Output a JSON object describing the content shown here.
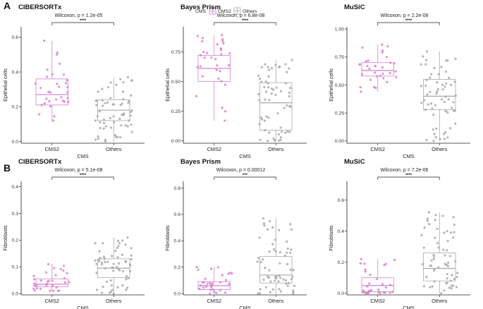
{
  "legend": {
    "title": "CMS",
    "entries": [
      "CMS2",
      "Others"
    ]
  },
  "colors": {
    "CMS2": "#d77fd0",
    "Others": "#a8a8a8",
    "axis": "#222222"
  },
  "x_axis_label": "CMS",
  "groups": [
    "CMS2",
    "Others"
  ],
  "chart_data": [
    {
      "type": "box",
      "row": "A",
      "title": "CIBERSORTx",
      "ylabel": "Epithelial cells",
      "yticks": [
        0,
        0.2,
        0.4,
        0.6
      ],
      "ylim": [
        -0.01,
        0.66
      ],
      "test": "Wilcoxon, p = 1.2e-05",
      "signif": "****",
      "boxes": [
        {
          "group": "CMS2",
          "min": 0.12,
          "q1": 0.21,
          "median": 0.27,
          "q3": 0.36,
          "max": 0.58,
          "n": 32
        },
        {
          "group": "Others",
          "min": 0.0,
          "q1": 0.12,
          "median": 0.18,
          "q3": 0.24,
          "max": 0.37,
          "n": 62
        }
      ]
    },
    {
      "type": "box",
      "row": "A",
      "title": "Bayes Prism",
      "ylabel": "Epithelial cells",
      "yticks": [
        0.0,
        0.25,
        0.5,
        0.75
      ],
      "ylim": [
        -0.02,
        0.96
      ],
      "test": "Wilcoxon, p = 6.8e-08",
      "signif": "****",
      "boxes": [
        {
          "group": "CMS2",
          "min": 0.17,
          "q1": 0.5,
          "median": 0.61,
          "q3": 0.72,
          "max": 0.89,
          "n": 32
        },
        {
          "group": "Others",
          "min": 0.0,
          "q1": 0.09,
          "median": 0.32,
          "q3": 0.49,
          "max": 0.68,
          "n": 62
        }
      ]
    },
    {
      "type": "box",
      "row": "A",
      "title": "MuSiC",
      "ylabel": "Epithelial cells",
      "yticks": [
        0.0,
        0.25,
        0.5,
        0.75,
        1.0
      ],
      "ylim": [
        -0.02,
        1.02
      ],
      "test": "Wilcoxon, p = 2.2e-08",
      "signif": "****",
      "boxes": [
        {
          "group": "CMS2",
          "min": 0.44,
          "q1": 0.58,
          "median": 0.63,
          "q3": 0.7,
          "max": 0.86,
          "n": 32
        },
        {
          "group": "Others",
          "min": 0.0,
          "q1": 0.28,
          "median": 0.4,
          "q3": 0.55,
          "max": 0.8,
          "n": 62
        }
      ]
    },
    {
      "type": "box",
      "row": "B",
      "title": "CIBERSORTx",
      "ylabel": "Fibroblasts",
      "yticks": [
        0.0,
        0.1,
        0.2,
        0.3,
        0.4
      ],
      "ylim": [
        -0.005,
        0.42
      ],
      "test": "Wilcoxon, p = 5.1e-08",
      "signif": "****",
      "boxes": [
        {
          "group": "CMS2",
          "min": 0.01,
          "q1": 0.025,
          "median": 0.035,
          "q3": 0.055,
          "max": 0.11,
          "n": 32
        },
        {
          "group": "Others",
          "min": 0.0,
          "q1": 0.06,
          "median": 0.095,
          "q3": 0.13,
          "max": 0.21,
          "n": 62
        }
      ]
    },
    {
      "type": "box",
      "row": "B",
      "title": "Bayes Prism",
      "ylabel": "Fibroblasts",
      "yticks": [
        0.0,
        0.2,
        0.4,
        0.6,
        0.8
      ],
      "ylim": [
        -0.01,
        0.85
      ],
      "test": "Wilcoxon, p = 0.00012",
      "signif": "***",
      "boxes": [
        {
          "group": "CMS2",
          "min": 0.0,
          "q1": 0.03,
          "median": 0.06,
          "q3": 0.09,
          "max": 0.2,
          "n": 32
        },
        {
          "group": "Others",
          "min": 0.0,
          "q1": 0.08,
          "median": 0.14,
          "q3": 0.28,
          "max": 0.57,
          "n": 62
        }
      ]
    },
    {
      "type": "box",
      "row": "B",
      "title": "MuSiC",
      "ylabel": "Fibroblasts",
      "yticks": [
        0.0,
        0.2,
        0.4,
        0.6
      ],
      "ylim": [
        -0.01,
        0.72
      ],
      "test": "Wilcoxon, p = 7.2e-06",
      "signif": "****",
      "boxes": [
        {
          "group": "CMS2",
          "min": 0.0,
          "q1": 0.01,
          "median": 0.05,
          "q3": 0.1,
          "max": 0.22,
          "n": 32
        },
        {
          "group": "Others",
          "min": 0.0,
          "q1": 0.08,
          "median": 0.16,
          "q3": 0.26,
          "max": 0.52,
          "n": 62
        }
      ]
    }
  ]
}
